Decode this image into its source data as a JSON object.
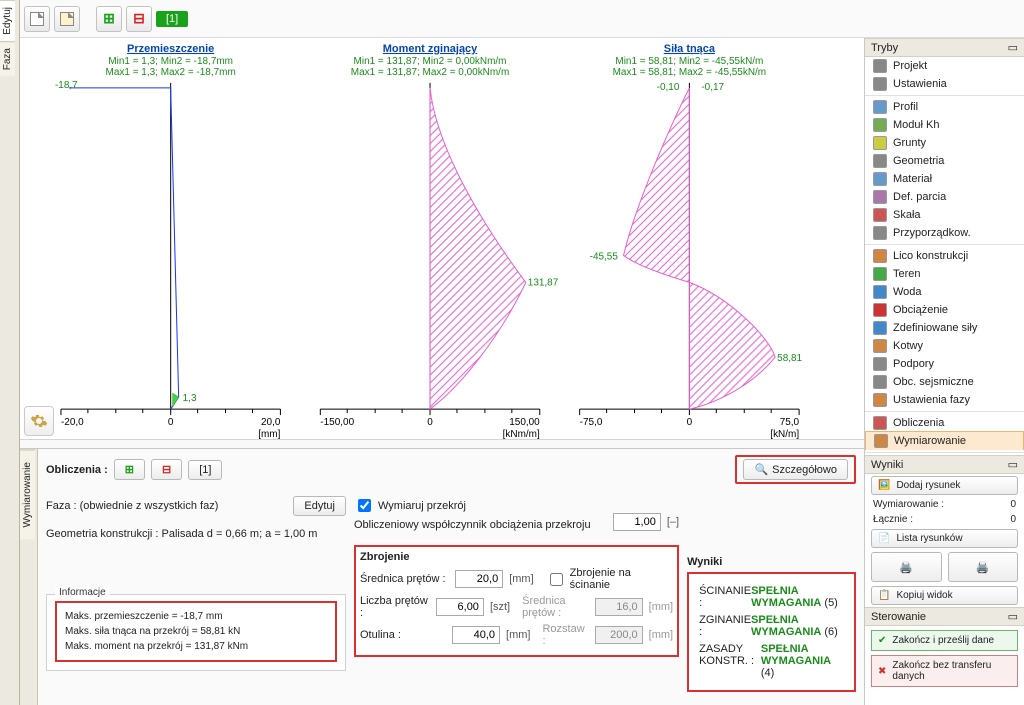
{
  "toolbar_left": {
    "edit": "Edytuj",
    "phase": "Faza"
  },
  "top": {
    "phase_tag": "[1]"
  },
  "charts": {
    "displacement": {
      "title": "Przemieszczenie",
      "min": "Min1 = 1,3; Min2 = -18,7mm",
      "max": "Max1 = 1,3; Max2 = -18,7mm",
      "left_label": "-18,7",
      "bottom_label": "1,3",
      "x_left": "-20,0",
      "x_right": "20,0",
      "unit": "[mm]",
      "line_color": "#1434ff"
    },
    "moment": {
      "title": "Moment zginający",
      "min": "Min1 = 131,87; Min2 = 0,00kNm/m",
      "max": "Max1 = 131,87; Max2 = 0,00kNm/m",
      "peak": "131,87",
      "x_left": "-150,00",
      "x_right": "150,00",
      "unit": "[kNm/m]",
      "fill_color": "#e95ed3"
    },
    "shear": {
      "title": "Siła tnąca",
      "min": "Min1 = 58,81; Min2 = -45,55kN/m",
      "max": "Max1 = 58,81; Max2 = -45,55kN/m",
      "neg_label": "-45,55",
      "top_label1": "-0,10",
      "top_label2": "-0,17",
      "pos_label": "58,81",
      "x_left": "-75,0",
      "x_right": "75,0",
      "unit": "[kN/m]",
      "fill_color": "#e95ed3"
    },
    "axis_zero": "0"
  },
  "right": {
    "modes_title": "Tryby",
    "modes": [
      "Projekt",
      "Ustawienia",
      "Profil",
      "Moduł Kh",
      "Grunty",
      "Geometria",
      "Materiał",
      "Def. parcia",
      "Skała",
      "Przyporządkow.",
      "Lico konstrukcji",
      "Teren",
      "Woda",
      "Obciążenie",
      "Zdefiniowane siły",
      "Kotwy",
      "Podpory",
      "Obc. sejsmiczne",
      "Ustawienia fazy",
      "Obliczenia",
      "Wymiarowanie"
    ],
    "results_title": "Wyniki",
    "add_drawing": "Dodaj rysunek",
    "dim_label": "Wymiarowanie :",
    "dim_val": "0",
    "total_label": "Łącznie :",
    "total_val": "0",
    "drawing_list": "Lista rysunków",
    "copy_view": "Kopiuj widok",
    "control_title": "Sterowanie",
    "finish_send": "Zakończ i prześlij dane",
    "finish_no": "Zakończ bez transferu danych"
  },
  "bottom": {
    "vtab": "Wymiarowanie",
    "calc_label": "Obliczenia :",
    "phase_tag": "[1]",
    "details_btn": "Szczegółowo",
    "phase_row": "Faza :   (obwiednie z wszystkich faz)",
    "edit_btn": "Edytuj",
    "geom_row": "Geometria konstrukcji : Palisada d = 0,66 m; a = 1,00 m",
    "dim_section_chk": "Wymiaruj przekrój",
    "coef_label": "Obliczeniowy współczynnik obciążenia przekroju",
    "coef_val": "1,00",
    "coef_unit": "[–]",
    "zbrojenie": "Zbrojenie",
    "diam_label": "Średnica prętów :",
    "diam_val": "20,0",
    "mm": "[mm]",
    "shear_chk": "Zbrojenie na ścinanie",
    "count_label": "Liczba prętów :",
    "count_val": "6,00",
    "szt": "[szt]",
    "shear_diam_label": "Średnica prętów :",
    "shear_diam_val": "16,0",
    "cover_label": "Otulina :",
    "cover_val": "40,0",
    "spacing_label": "Rozstaw :",
    "spacing_val": "200,0",
    "wyniki": "Wyniki",
    "shear_res": "ŚCINANIE :",
    "bend_res": "ZGINANIE :",
    "constr_res": "ZASADY KONSTR. :",
    "ok": "SPEŁNIA WYMAGANIA",
    "ok1": "(5)",
    "ok2": "(6)",
    "ok3": "(4)",
    "info_leg": "Informacje",
    "info_l1": "Maks. przemieszczenie      =   -18,7 mm",
    "info_l2": "Maks. siła tnąca na przekrój =   58,81 kN",
    "info_l3": "Maks. moment na przekrój   = 131,87 kNm"
  }
}
